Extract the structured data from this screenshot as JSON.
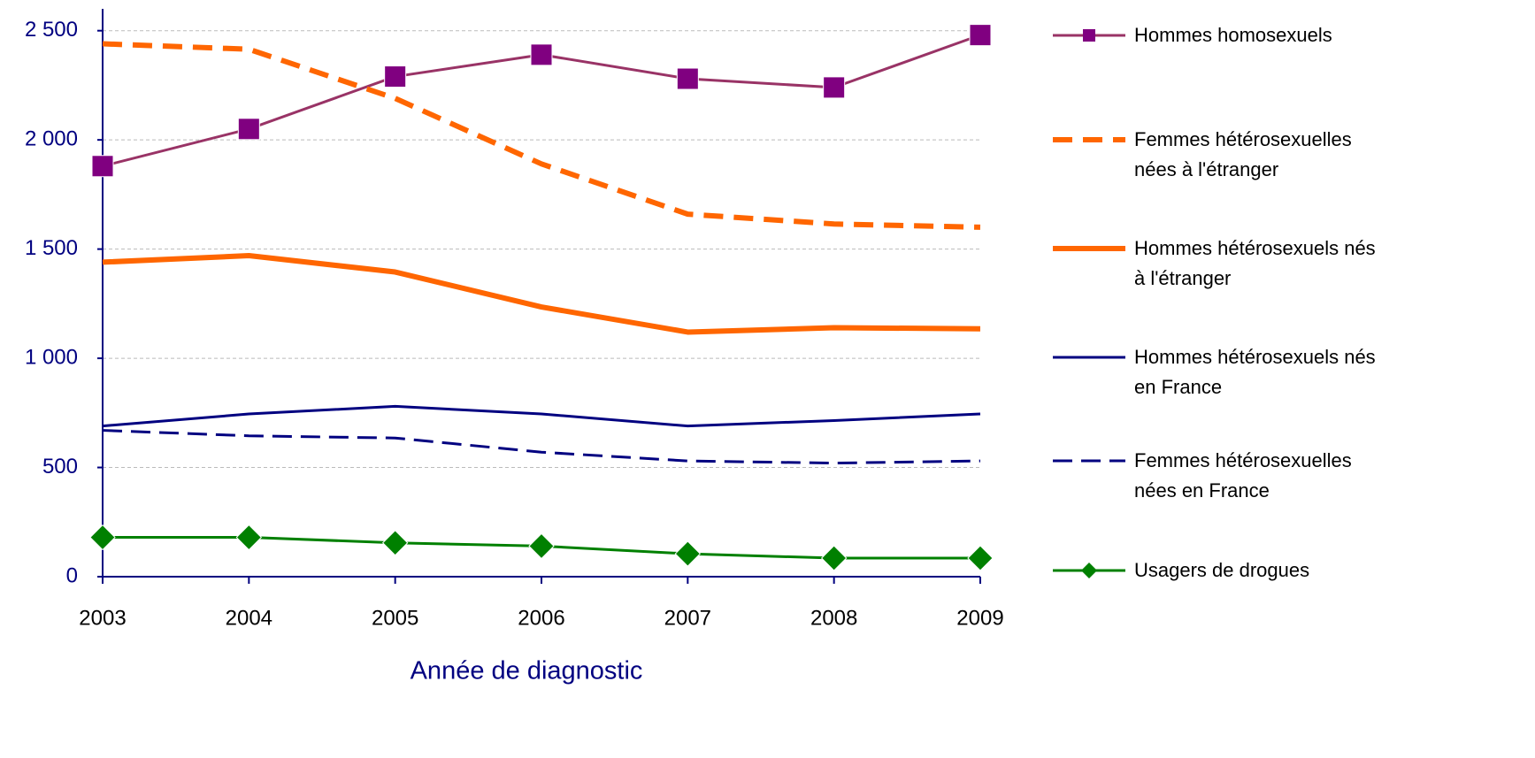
{
  "chart_data": {
    "type": "line",
    "x_label": "Année de diagnostic",
    "categories": [
      "2003",
      "2004",
      "2005",
      "2006",
      "2007",
      "2008",
      "2009"
    ],
    "ylim": [
      0,
      2600
    ],
    "yticks": [
      0,
      500,
      {
        "value": 1000,
        "label": "1 000"
      },
      {
        "value": 1500,
        "label": "1 500"
      },
      {
        "value": 2000,
        "label": "2 000"
      },
      {
        "value": 2500,
        "label": "2 500"
      }
    ],
    "grid": true,
    "legend": "right",
    "series": [
      {
        "name": "Hommes homosexuels",
        "color": "#993366",
        "marker": "square",
        "marker_color": "#800080",
        "dash": "solid",
        "width": 3,
        "values": [
          1880,
          2050,
          2290,
          2390,
          2280,
          2240,
          2480
        ]
      },
      {
        "name": "Femmes hétérosexuelles nées à l'étranger",
        "color": "#ff6600",
        "dash": "dashed",
        "width": 6,
        "values": [
          2440,
          2415,
          2190,
          1890,
          1660,
          1615,
          1600
        ]
      },
      {
        "name": "Hommes hétérosexuels nés à l'étranger",
        "color": "#ff6600",
        "dash": "solid",
        "width": 6,
        "values": [
          1440,
          1470,
          1395,
          1235,
          1120,
          1140,
          1135
        ]
      },
      {
        "name": "Hommes hétérosexuels nés en France",
        "color": "#000080",
        "dash": "solid",
        "width": 3,
        "values": [
          690,
          745,
          780,
          745,
          690,
          715,
          745
        ]
      },
      {
        "name": "Femmes hétérosexuelles nées en France",
        "color": "#000080",
        "dash": "dashed",
        "width": 3,
        "values": [
          670,
          645,
          635,
          570,
          530,
          520,
          530
        ]
      },
      {
        "name": "Usagers de drogues",
        "color": "#008000",
        "marker": "diamond",
        "marker_color": "#008000",
        "dash": "solid",
        "width": 3,
        "values": [
          180,
          180,
          155,
          140,
          105,
          85,
          85
        ]
      }
    ]
  }
}
